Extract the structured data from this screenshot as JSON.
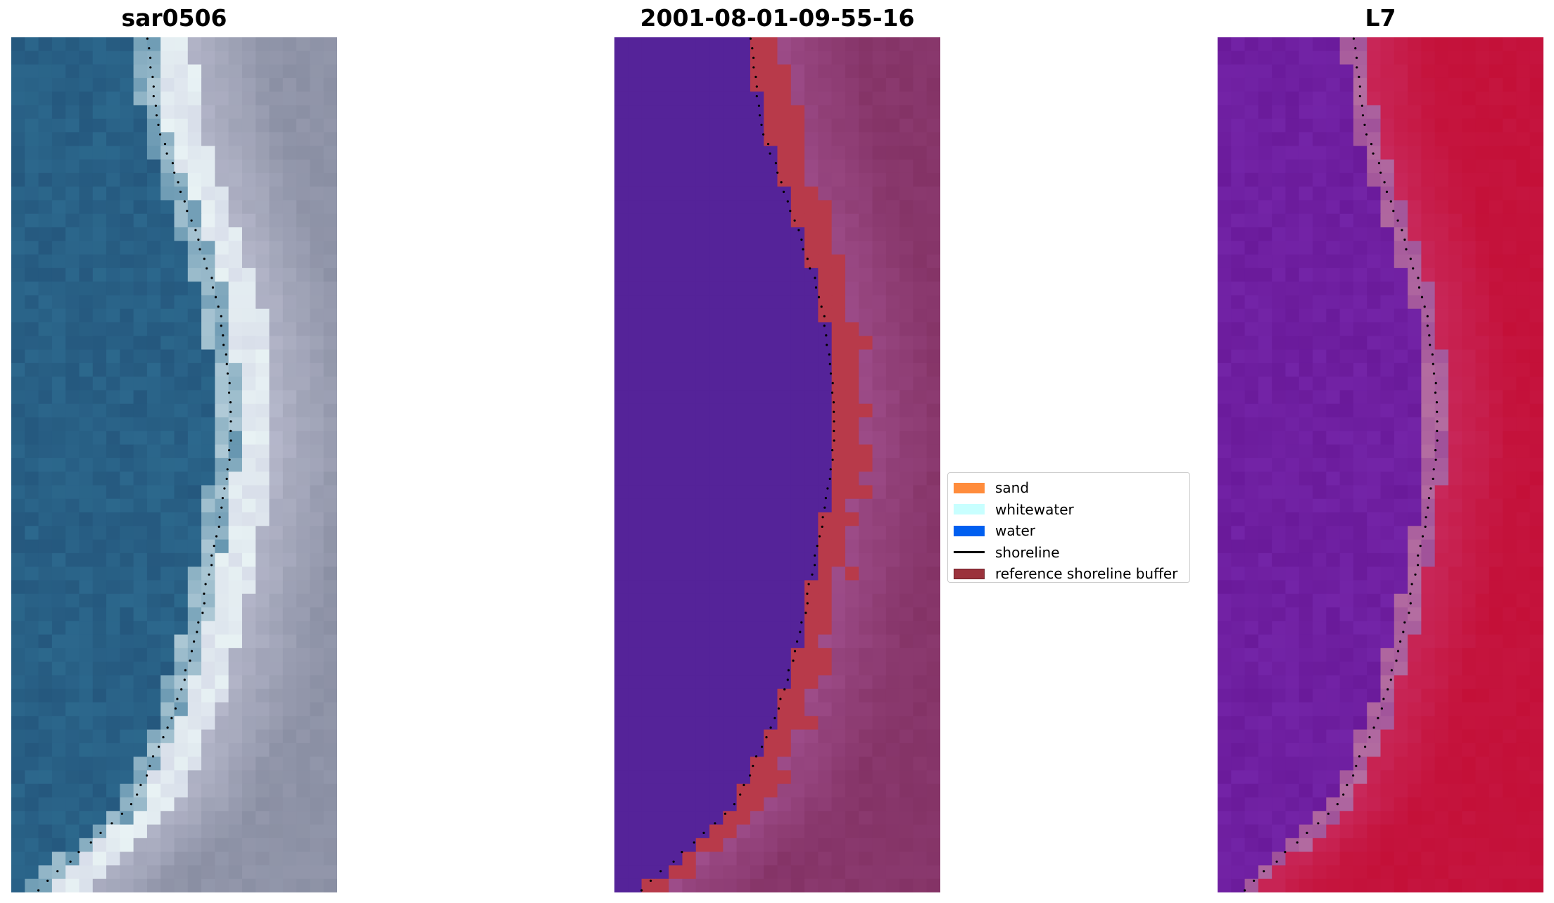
{
  "panels": [
    {
      "title": "sar0506",
      "kind": "rgb"
    },
    {
      "title": "2001-08-01-09-55-16",
      "kind": "classified"
    },
    {
      "title": "L7",
      "kind": "index"
    }
  ],
  "legend": {
    "items": [
      {
        "label": "sand",
        "type": "patch",
        "color": "#ff8c3c"
      },
      {
        "label": "whitewater",
        "type": "patch",
        "color": "#c8ffff"
      },
      {
        "label": "water",
        "type": "patch",
        "color": "#005ff0"
      },
      {
        "label": "shoreline",
        "type": "line",
        "color": "#000000"
      },
      {
        "label": "reference shoreline buffer",
        "type": "patch",
        "color": "#9b323c"
      }
    ]
  },
  "colors": {
    "water_deep": "#25587e",
    "water_mid": "#2f6f93",
    "whitewater": "#e8f2f4",
    "sand_grey": "#8a8fa3",
    "classified_water": "#552399",
    "classified_buffer": "#b83a4a",
    "classified_land": "#87366a",
    "index_low": "#6a1a9a",
    "index_high": "#c41038"
  }
}
